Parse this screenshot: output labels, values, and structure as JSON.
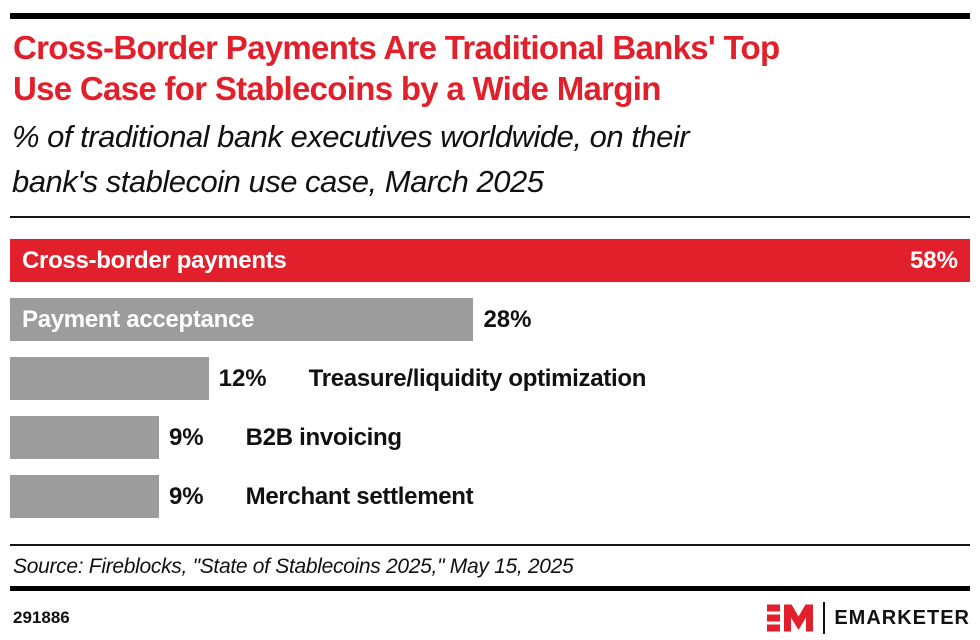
{
  "theme": {
    "accent_red": "#E2202B",
    "bar_gray": "#9C9C9C",
    "text_black": "#111111",
    "line_black": "#000000",
    "background": "#FFFFFF"
  },
  "header": {
    "title": "Cross-Border Payments Are Traditional Banks' Top Use Case for Stablecoins by a Wide Margin",
    "title_line1": "Cross-Border Payments Are Traditional Banks' Top",
    "title_line2": "Use Case for Stablecoins by a Wide Margin",
    "subtitle": "% of traditional bank executives worldwide, on their bank's stablecoin use case, March 2025",
    "subtitle_line1": "% of traditional bank executives worldwide, on their",
    "subtitle_line2": "bank's stablecoin use case, March 2025"
  },
  "chart_data": {
    "type": "bar",
    "orientation": "horizontal",
    "title": "Cross-Border Payments Are Traditional Banks' Top Use Case for Stablecoins by a Wide Margin",
    "subtitle": "% of traditional bank executives worldwide, on their bank's stablecoin use case, March 2025",
    "categories": [
      "Cross-border payments",
      "Payment acceptance",
      "Treasure/liquidity optimization",
      "B2B invoicing",
      "Merchant settlement"
    ],
    "values": [
      58,
      28,
      12,
      9,
      9
    ],
    "value_labels": [
      "58%",
      "28%",
      "12%",
      "9%",
      "9%"
    ],
    "xlim": [
      0,
      58
    ],
    "max_value": 58,
    "grid": false,
    "legend": "none",
    "bars": [
      {
        "label": "Cross-border payments",
        "value": 58,
        "value_label": "58%",
        "color": "#E2202B",
        "label_position": "inside",
        "value_position": "inside"
      },
      {
        "label": "Payment acceptance",
        "value": 28,
        "value_label": "28%",
        "color": "#9C9C9C",
        "label_position": "inside",
        "value_position": "outside"
      },
      {
        "label": "Treasure/liquidity optimization",
        "value": 12,
        "value_label": "12%",
        "color": "#9C9C9C",
        "label_position": "outside",
        "value_position": "outside"
      },
      {
        "label": "B2B invoicing",
        "value": 9,
        "value_label": "9%",
        "color": "#9C9C9C",
        "label_position": "outside",
        "value_position": "outside"
      },
      {
        "label": "Merchant settlement",
        "value": 9,
        "value_label": "9%",
        "color": "#9C9C9C",
        "label_position": "outside",
        "value_position": "outside"
      }
    ]
  },
  "footer": {
    "source": "Source: Fireblocks, \"State of Stablecoins 2025,\" May 15, 2025",
    "chart_id": "291886",
    "logo_monogram": "EM",
    "logo_text": "EMARKETER"
  }
}
